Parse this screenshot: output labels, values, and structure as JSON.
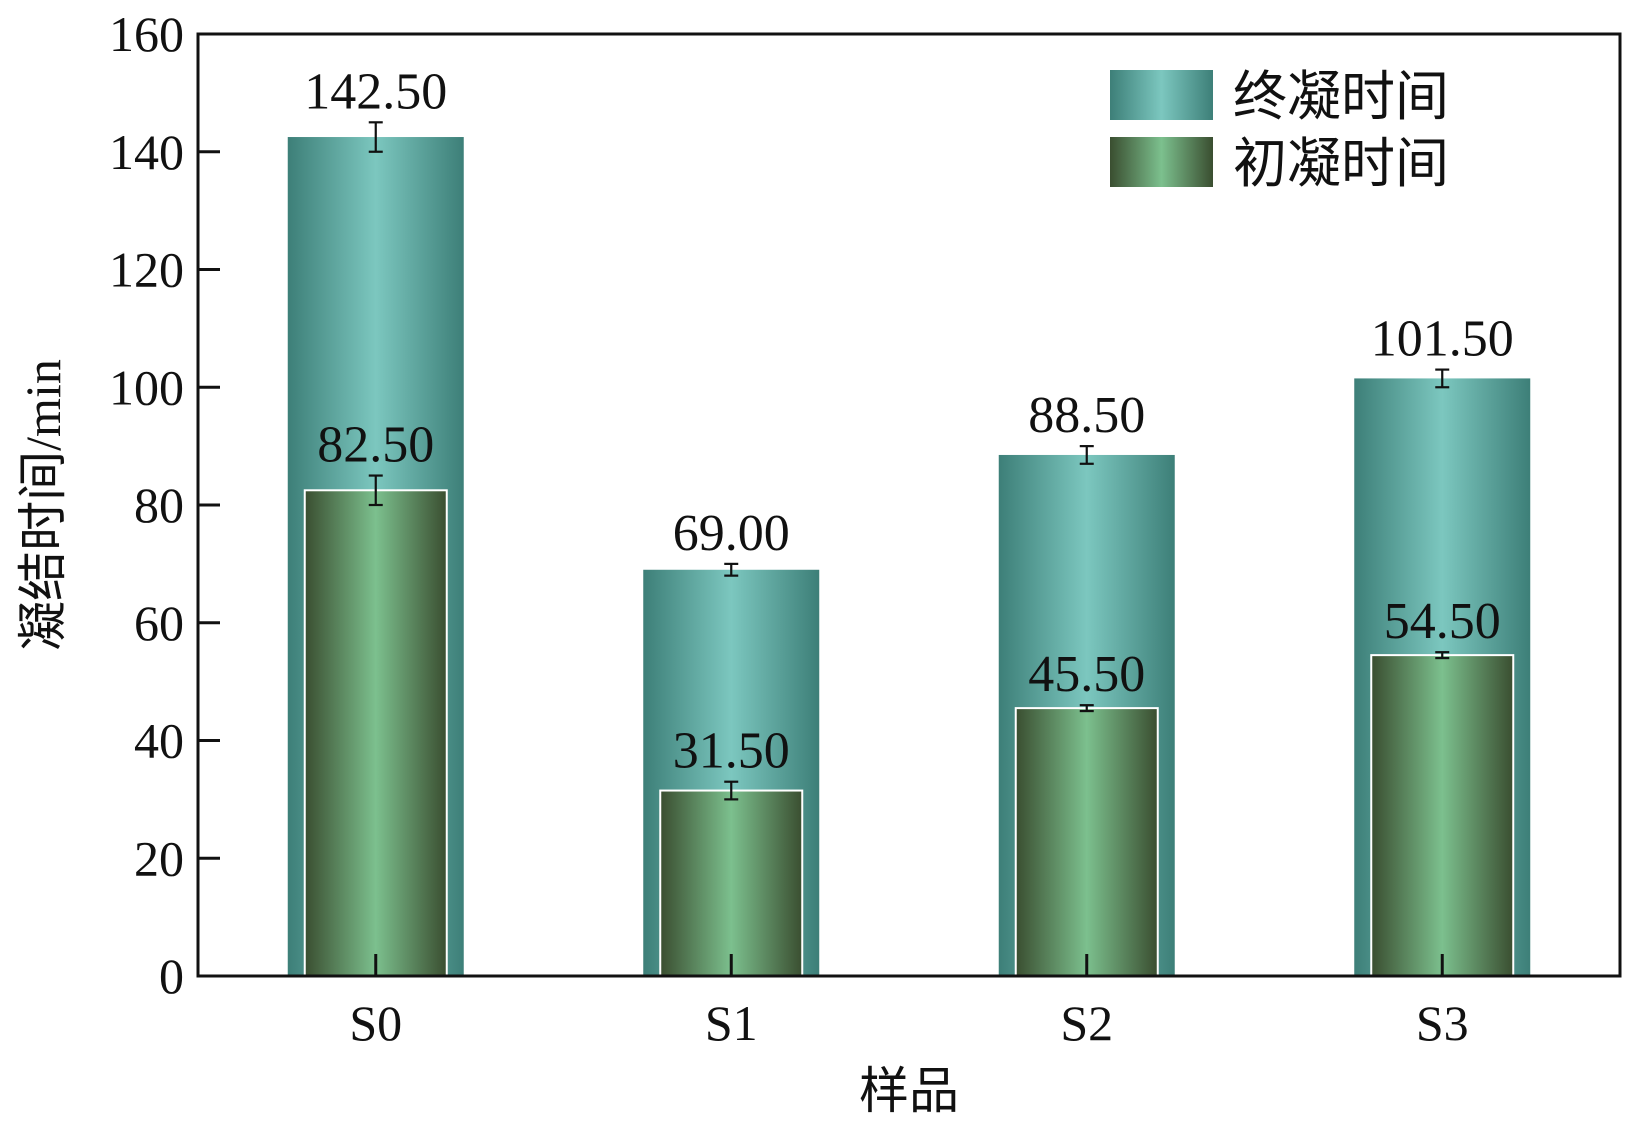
{
  "chart_data": {
    "type": "bar",
    "xlabel": "样品",
    "ylabel": "凝结时间/min",
    "categories": [
      "S0",
      "S1",
      "S2",
      "S3"
    ],
    "ylim": [
      0,
      160
    ],
    "yticks": [
      0,
      20,
      40,
      60,
      80,
      100,
      120,
      140,
      160
    ],
    "grid": false,
    "legend_position": "top-right",
    "series": [
      {
        "name": "终凝时间",
        "values": [
          142.5,
          69.0,
          88.5,
          101.5
        ],
        "labels": [
          "142.50",
          "69.00",
          "88.50",
          "101.50"
        ],
        "errors": [
          2.5,
          1.0,
          1.5,
          1.5
        ],
        "color": "#3f9e95",
        "highlight": "#7cc7bf"
      },
      {
        "name": "初凝时间",
        "values": [
          82.5,
          31.5,
          45.5,
          54.5
        ],
        "labels": [
          "82.50",
          "31.50",
          "45.50",
          "54.50"
        ],
        "errors": [
          2.5,
          1.5,
          0.5,
          0.5
        ],
        "color": "#3f5c38",
        "highlight": "#7cc08e"
      }
    ]
  }
}
